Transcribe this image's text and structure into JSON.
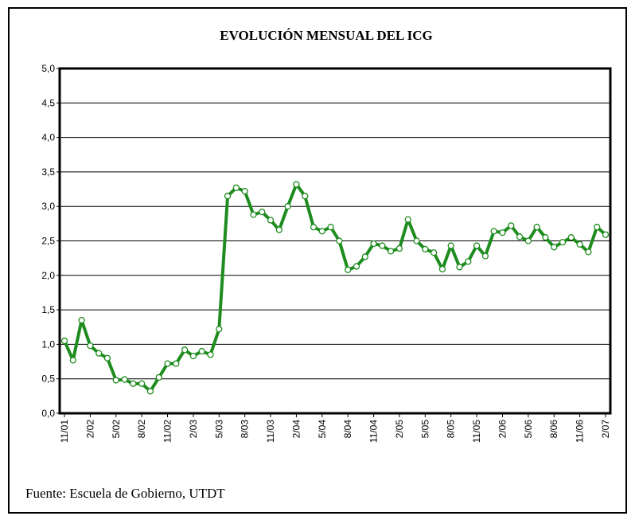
{
  "chart_data": {
    "type": "line",
    "title": "EVOLUCIÓN MENSUAL DEL ICG",
    "source": "Fuente: Escuela de Gobierno, UTDT",
    "categories": [
      "11/01",
      null,
      null,
      "2/02",
      null,
      null,
      "5/02",
      null,
      null,
      "8/02",
      null,
      null,
      "11/02",
      null,
      null,
      "2/03",
      null,
      null,
      "5/03",
      null,
      null,
      "8/03",
      null,
      null,
      "11/03",
      null,
      null,
      "2/04",
      null,
      null,
      "5/04",
      null,
      null,
      "8/04",
      null,
      null,
      "11/04",
      null,
      null,
      "2/05",
      null,
      null,
      "5/05",
      null,
      null,
      "8/05",
      null,
      null,
      "11/05",
      null,
      null,
      "2/06",
      null,
      null,
      "5/06",
      null,
      null,
      "8/06",
      null,
      null,
      "11/06",
      null,
      null,
      "2/07"
    ],
    "values": [
      1.05,
      0.77,
      1.35,
      0.98,
      0.87,
      0.8,
      0.48,
      0.49,
      0.43,
      0.43,
      0.32,
      0.52,
      0.72,
      0.72,
      0.92,
      0.83,
      0.9,
      0.85,
      1.22,
      3.15,
      3.27,
      3.22,
      2.88,
      2.92,
      2.8,
      2.66,
      3.0,
      3.32,
      3.15,
      2.7,
      2.64,
      2.7,
      2.5,
      2.08,
      2.13,
      2.27,
      2.46,
      2.43,
      2.35,
      2.39,
      2.81,
      2.5,
      2.38,
      2.33,
      2.09,
      2.43,
      2.12,
      2.2,
      2.43,
      2.28,
      2.64,
      2.62,
      2.72,
      2.56,
      2.5,
      2.7,
      2.55,
      2.41,
      2.48,
      2.55,
      2.45,
      2.34,
      2.7,
      2.59
    ],
    "color": "#1e8c1e",
    "ylim": [
      0,
      5
    ],
    "yticks": [
      {
        "value": 0,
        "label": "0,0"
      },
      {
        "value": 0.5,
        "label": "0,5"
      },
      {
        "value": 1,
        "label": "1,0"
      },
      {
        "value": 1.5,
        "label": "1,5"
      },
      {
        "value": 2,
        "label": "2,0"
      },
      {
        "value": 2.5,
        "label": "2,5"
      },
      {
        "value": 3,
        "label": "3,0"
      },
      {
        "value": 3.5,
        "label": "3,5"
      },
      {
        "value": 4,
        "label": "4,0"
      },
      {
        "value": 4.5,
        "label": "4,5"
      },
      {
        "value": 5,
        "label": "5,0"
      }
    ],
    "grid": true
  }
}
